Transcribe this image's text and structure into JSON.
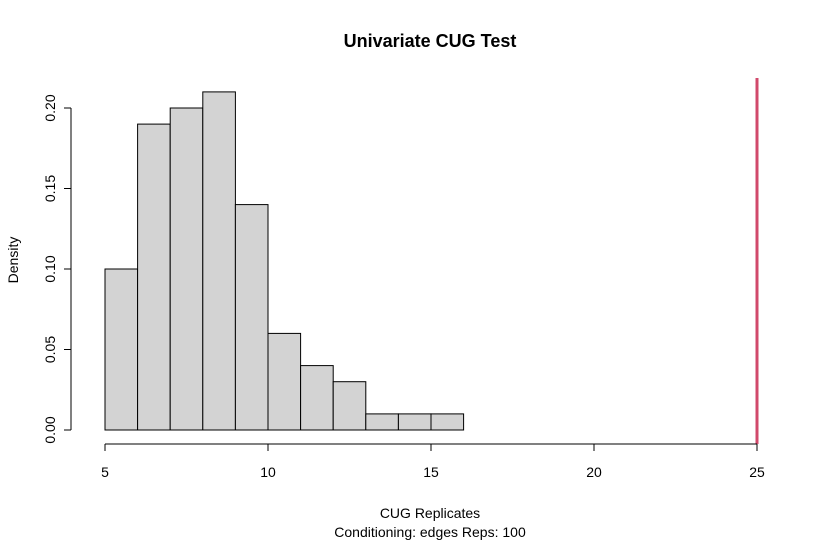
{
  "chart_data": {
    "type": "bar",
    "title": "Univariate CUG Test",
    "xlabel": "CUG Replicates",
    "subtitle": "Conditioning: edges Reps: 100",
    "ylabel": "Density",
    "xlim": [
      5,
      25
    ],
    "ylim": [
      0,
      0.21
    ],
    "x_ticks": [
      5,
      10,
      15,
      20,
      25
    ],
    "y_ticks": [
      0.0,
      0.05,
      0.1,
      0.15,
      0.2
    ],
    "x_tick_labels": [
      "5",
      "10",
      "15",
      "20",
      "25"
    ],
    "y_tick_labels": [
      "0.00",
      "0.05",
      "0.10",
      "0.15",
      "0.20"
    ],
    "bin_width": 1,
    "bins": [
      {
        "start": 5,
        "end": 6,
        "density": 0.1
      },
      {
        "start": 6,
        "end": 7,
        "density": 0.19
      },
      {
        "start": 7,
        "end": 8,
        "density": 0.2
      },
      {
        "start": 8,
        "end": 9,
        "density": 0.21
      },
      {
        "start": 9,
        "end": 10,
        "density": 0.14
      },
      {
        "start": 10,
        "end": 11,
        "density": 0.06
      },
      {
        "start": 11,
        "end": 12,
        "density": 0.04
      },
      {
        "start": 12,
        "end": 13,
        "density": 0.03
      },
      {
        "start": 13,
        "end": 14,
        "density": 0.01
      },
      {
        "start": 14,
        "end": 15,
        "density": 0.01
      },
      {
        "start": 15,
        "end": 16,
        "density": 0.01
      }
    ],
    "observed_value": 25,
    "bar_color": "#d3d3d3",
    "observed_line_color": "#d1496b",
    "grid": false
  }
}
